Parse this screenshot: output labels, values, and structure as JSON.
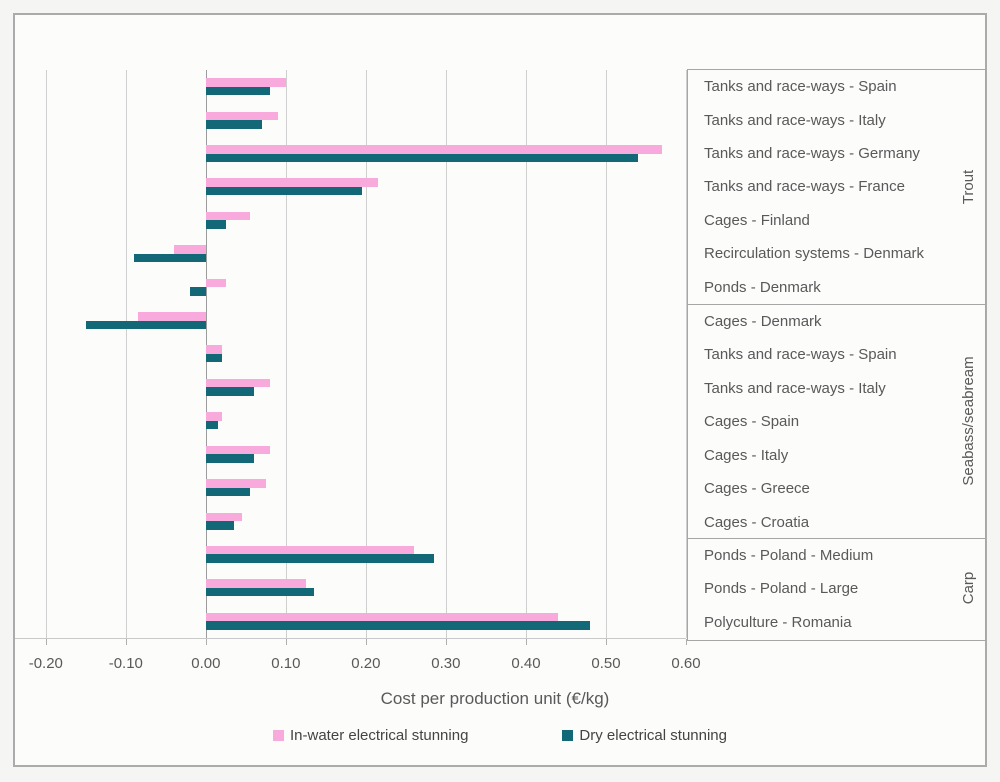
{
  "chart_data": {
    "type": "bar",
    "orientation": "horizontal",
    "title": "",
    "xlabel": "Cost per production unit (€/kg)",
    "ylabel": "",
    "xlim": [
      -0.2385,
      0.6
    ],
    "grid": true,
    "legend_position": "bottom",
    "x_ticks": {
      "values": [
        -0.2,
        -0.1,
        0.0,
        0.1,
        0.2,
        0.3,
        0.4,
        0.5,
        0.6
      ],
      "labels": [
        "-0.20",
        "-0.10",
        "0.00",
        "0.10",
        "0.20",
        "0.30",
        "0.40",
        "0.50",
        "0.60"
      ]
    },
    "groups": [
      {
        "name": "Trout",
        "categories": [
          "Tanks and race-ways - Spain",
          "Tanks and race-ways - Italy",
          "Tanks and race-ways - Germany",
          "Tanks and race-ways - France",
          "Cages - Finland",
          "Recirculation systems - Denmark",
          "Ponds - Denmark"
        ]
      },
      {
        "name": "Seabass/seabream",
        "categories": [
          "Cages - Denmark",
          "Tanks and race-ways - Spain",
          "Tanks and race-ways - Italy",
          "Cages - Spain",
          "Cages - Italy",
          "Cages - Greece",
          "Cages - Croatia"
        ]
      },
      {
        "name": "Carp",
        "categories": [
          "Ponds - Poland - Medium",
          "Ponds - Poland - Large",
          "Polyculture - Romania"
        ]
      }
    ],
    "series": [
      {
        "name": "In-water electrical stunning",
        "color": "#f8aadc",
        "values": [
          0.1,
          0.09,
          0.57,
          0.215,
          0.055,
          -0.04,
          0.025,
          -0.085,
          0.02,
          0.08,
          0.02,
          0.08,
          0.075,
          0.045,
          0.26,
          0.125,
          0.44
        ]
      },
      {
        "name": "Dry electrical stunning",
        "color": "#126877",
        "values": [
          0.08,
          0.07,
          0.54,
          0.195,
          0.025,
          -0.09,
          -0.02,
          -0.15,
          0.02,
          0.06,
          0.015,
          0.06,
          0.055,
          0.035,
          0.285,
          0.135,
          0.48
        ]
      }
    ],
    "colors": {
      "background": "#f5f5f4",
      "plot_background": "#fcfcfb",
      "frame_border": "#ababab",
      "gridline": "#cfcfcf",
      "zero_line": "#9c9c9c",
      "text": "#595959"
    }
  }
}
